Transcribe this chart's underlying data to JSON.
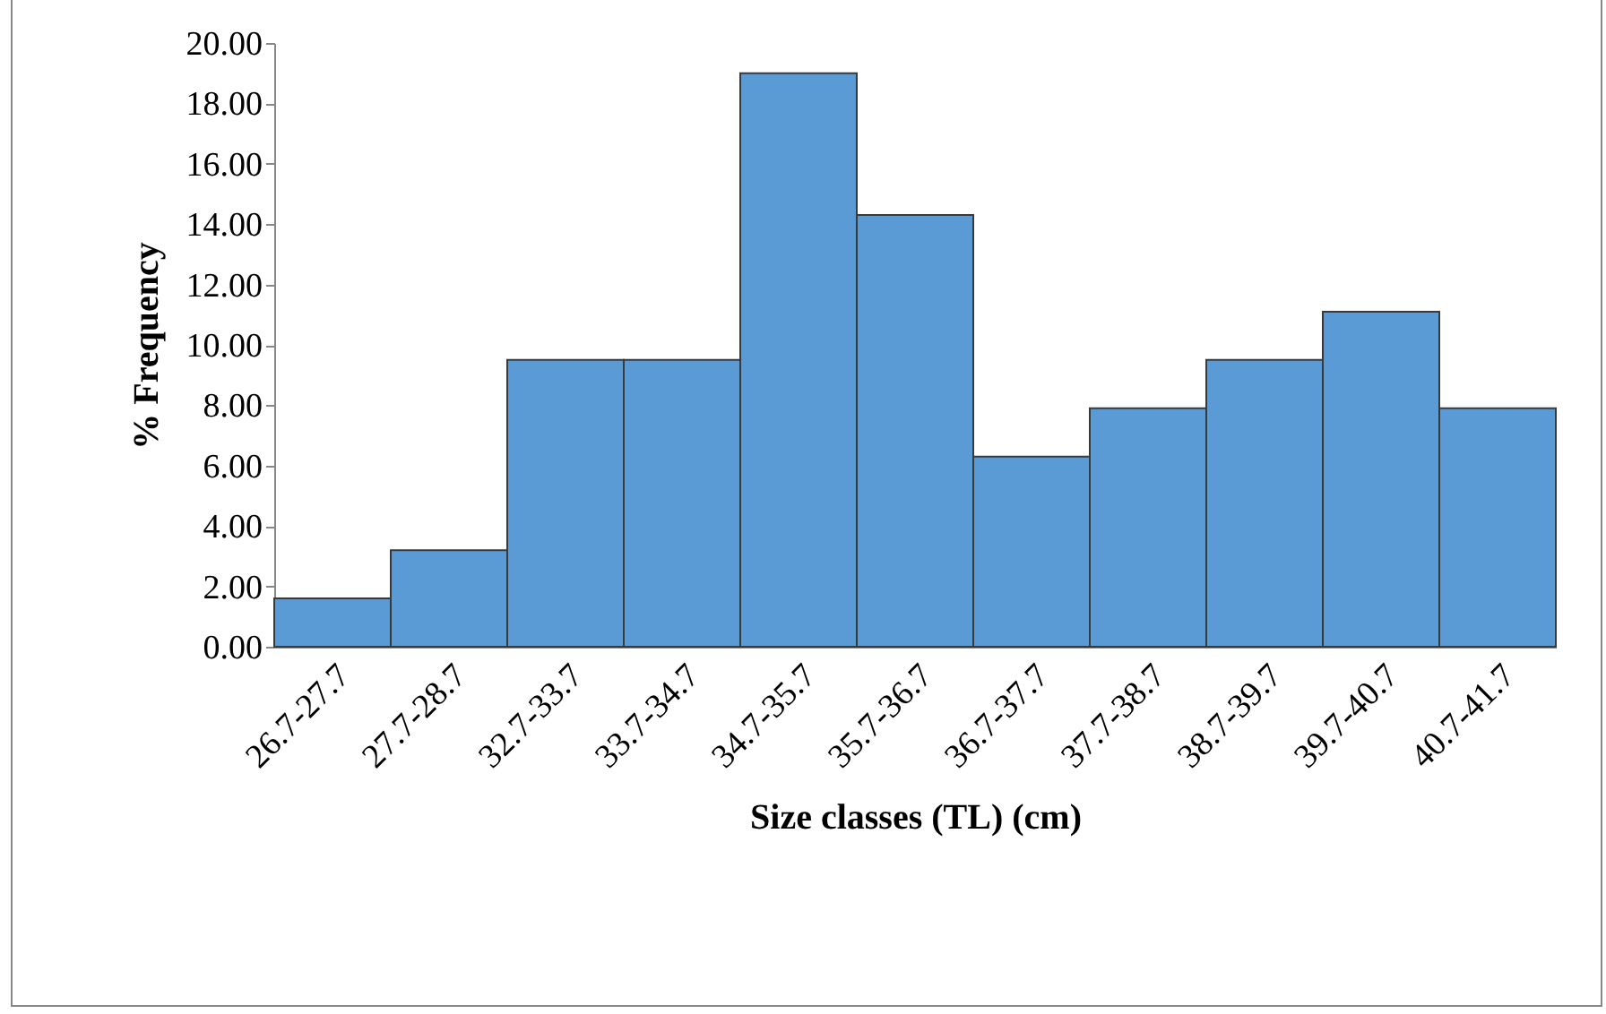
{
  "chart_data": {
    "type": "bar",
    "xlabel": "Size classes (TL) (cm)",
    "ylabel": "% Frequency",
    "categories": [
      "26.7-27.7",
      "27.7-28.7",
      "32.7-33.7",
      "33.7-34.7",
      "34.7-35.7",
      "35.7-36.7",
      "36.7-37.7",
      "37.7-38.7",
      "38.7-39.7",
      "39.7-40.7",
      "40.7-41.7"
    ],
    "values": [
      1.6,
      3.2,
      9.5,
      9.5,
      19.0,
      14.3,
      6.3,
      7.9,
      9.5,
      11.1,
      7.9
    ],
    "color": "#5b9bd5",
    "ylim": [
      0,
      20
    ],
    "yticks": [
      {
        "value": 0,
        "label": "0.00"
      },
      {
        "value": 2,
        "label": "2.00"
      },
      {
        "value": 4,
        "label": "4.00"
      },
      {
        "value": 6,
        "label": "6.00"
      },
      {
        "value": 8,
        "label": "8.00"
      },
      {
        "value": 10,
        "label": "10.00"
      },
      {
        "value": 12,
        "label": "12.00"
      },
      {
        "value": 14,
        "label": "14.00"
      },
      {
        "value": 16,
        "label": "16.00"
      },
      {
        "value": 18,
        "label": "18.00"
      },
      {
        "value": 20,
        "label": "20.00"
      }
    ],
    "grid": false
  }
}
